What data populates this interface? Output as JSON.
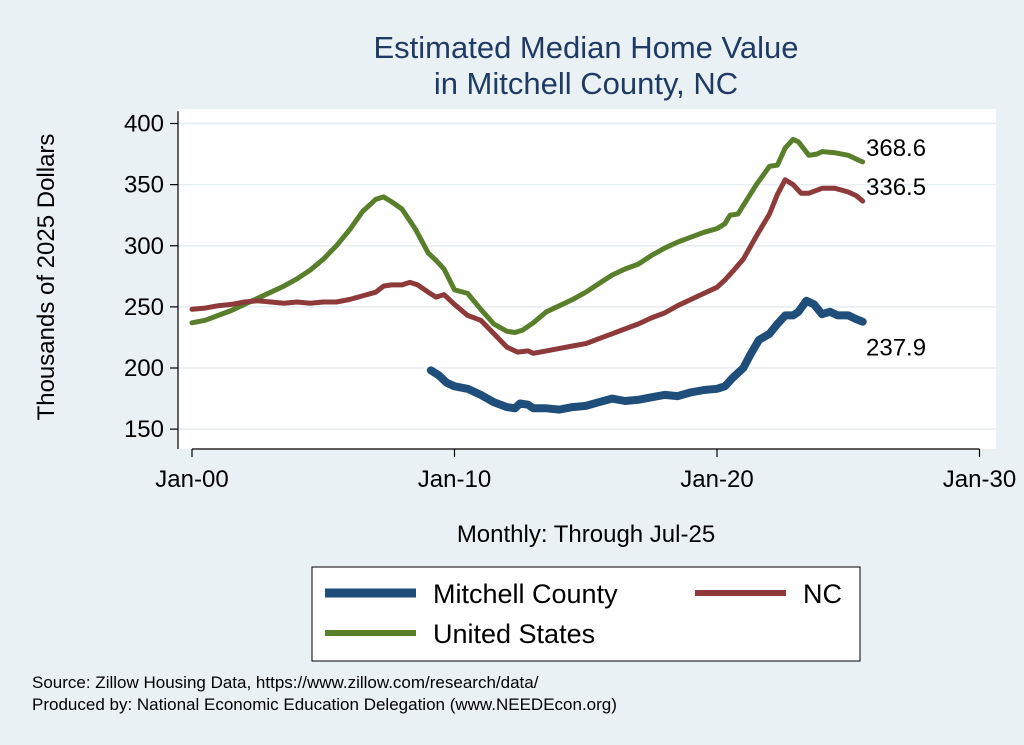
{
  "chart_data": {
    "type": "line",
    "title": [
      "Estimated Median Home Value",
      "in Mitchell County, NC"
    ],
    "xlabel": "Monthly: Through Jul-25",
    "ylabel": "Thousands of 2025 Dollars",
    "x_ticks": [
      {
        "value": 2000,
        "label": "Jan-00"
      },
      {
        "value": 2010,
        "label": "Jan-10"
      },
      {
        "value": 2020,
        "label": "Jan-20"
      },
      {
        "value": 2030,
        "label": "Jan-30"
      }
    ],
    "y_ticks": [
      150,
      200,
      250,
      300,
      350,
      400
    ],
    "xlim": [
      2000,
      2030
    ],
    "ylim": [
      140,
      410
    ],
    "grid": "horizontal",
    "legend_position": "bottom",
    "series": [
      {
        "name": "United States",
        "color": "#5a7f2b",
        "end_label": "368.6",
        "points": [
          [
            2000.0,
            237
          ],
          [
            2000.5,
            239
          ],
          [
            2001.0,
            243
          ],
          [
            2001.5,
            247
          ],
          [
            2002.0,
            252
          ],
          [
            2002.5,
            257
          ],
          [
            2003.0,
            262
          ],
          [
            2003.5,
            267
          ],
          [
            2004.0,
            273
          ],
          [
            2004.5,
            280
          ],
          [
            2005.0,
            289
          ],
          [
            2005.5,
            300
          ],
          [
            2006.0,
            313
          ],
          [
            2006.5,
            328
          ],
          [
            2007.0,
            338
          ],
          [
            2007.3,
            340
          ],
          [
            2007.6,
            336
          ],
          [
            2008.0,
            330
          ],
          [
            2008.5,
            314
          ],
          [
            2009.0,
            294
          ],
          [
            2009.3,
            288
          ],
          [
            2009.6,
            281
          ],
          [
            2010.0,
            264
          ],
          [
            2010.5,
            261
          ],
          [
            2011.0,
            248
          ],
          [
            2011.5,
            236
          ],
          [
            2012.0,
            230
          ],
          [
            2012.3,
            229
          ],
          [
            2012.6,
            231
          ],
          [
            2013.0,
            237
          ],
          [
            2013.5,
            246
          ],
          [
            2014.0,
            251
          ],
          [
            2014.5,
            256
          ],
          [
            2015.0,
            262
          ],
          [
            2015.5,
            269
          ],
          [
            2016.0,
            276
          ],
          [
            2016.5,
            281
          ],
          [
            2017.0,
            285
          ],
          [
            2017.5,
            292
          ],
          [
            2018.0,
            298
          ],
          [
            2018.5,
            303
          ],
          [
            2019.0,
            307
          ],
          [
            2019.5,
            311
          ],
          [
            2020.0,
            314
          ],
          [
            2020.3,
            318
          ],
          [
            2020.5,
            325
          ],
          [
            2020.8,
            326
          ],
          [
            2021.0,
            333
          ],
          [
            2021.5,
            350
          ],
          [
            2022.0,
            365
          ],
          [
            2022.3,
            366
          ],
          [
            2022.6,
            380
          ],
          [
            2022.9,
            387
          ],
          [
            2023.1,
            385
          ],
          [
            2023.5,
            374
          ],
          [
            2023.8,
            375
          ],
          [
            2024.0,
            377
          ],
          [
            2024.5,
            376
          ],
          [
            2025.0,
            374
          ],
          [
            2025.3,
            371
          ],
          [
            2025.55,
            368.6
          ]
        ]
      },
      {
        "name": "NC",
        "color": "#8e3a3a",
        "end_label": "336.5",
        "points": [
          [
            2000.0,
            248
          ],
          [
            2000.5,
            249
          ],
          [
            2001.0,
            251
          ],
          [
            2001.5,
            252
          ],
          [
            2002.0,
            254
          ],
          [
            2002.5,
            255
          ],
          [
            2003.0,
            254
          ],
          [
            2003.5,
            253
          ],
          [
            2004.0,
            254
          ],
          [
            2004.5,
            253
          ],
          [
            2005.0,
            254
          ],
          [
            2005.5,
            254
          ],
          [
            2006.0,
            256
          ],
          [
            2006.5,
            259
          ],
          [
            2007.0,
            262
          ],
          [
            2007.3,
            267
          ],
          [
            2007.6,
            268
          ],
          [
            2008.0,
            268
          ],
          [
            2008.3,
            270
          ],
          [
            2008.6,
            268
          ],
          [
            2009.0,
            262
          ],
          [
            2009.3,
            258
          ],
          [
            2009.6,
            260
          ],
          [
            2010.0,
            252
          ],
          [
            2010.5,
            243
          ],
          [
            2011.0,
            239
          ],
          [
            2011.5,
            228
          ],
          [
            2012.0,
            217
          ],
          [
            2012.4,
            213
          ],
          [
            2012.8,
            214
          ],
          [
            2013.0,
            212
          ],
          [
            2013.5,
            214
          ],
          [
            2014.0,
            216
          ],
          [
            2014.5,
            218
          ],
          [
            2015.0,
            220
          ],
          [
            2015.5,
            224
          ],
          [
            2016.0,
            228
          ],
          [
            2016.5,
            232
          ],
          [
            2017.0,
            236
          ],
          [
            2017.5,
            241
          ],
          [
            2018.0,
            245
          ],
          [
            2018.5,
            251
          ],
          [
            2019.0,
            256
          ],
          [
            2019.5,
            261
          ],
          [
            2020.0,
            266
          ],
          [
            2020.3,
            272
          ],
          [
            2020.6,
            279
          ],
          [
            2021.0,
            289
          ],
          [
            2021.5,
            308
          ],
          [
            2022.0,
            326
          ],
          [
            2022.3,
            342
          ],
          [
            2022.6,
            354
          ],
          [
            2022.9,
            350
          ],
          [
            2023.2,
            343
          ],
          [
            2023.5,
            343
          ],
          [
            2024.0,
            347
          ],
          [
            2024.5,
            347
          ],
          [
            2025.0,
            344
          ],
          [
            2025.3,
            341
          ],
          [
            2025.55,
            336.5
          ]
        ]
      },
      {
        "name": "Mitchell County",
        "color": "#1f4e7a",
        "end_label": "237.9",
        "points": [
          [
            2009.1,
            198
          ],
          [
            2009.4,
            194
          ],
          [
            2009.7,
            188
          ],
          [
            2010.0,
            185
          ],
          [
            2010.5,
            183
          ],
          [
            2011.0,
            178
          ],
          [
            2011.5,
            172
          ],
          [
            2012.0,
            168
          ],
          [
            2012.3,
            167
          ],
          [
            2012.5,
            171
          ],
          [
            2012.8,
            170
          ],
          [
            2013.0,
            167
          ],
          [
            2013.5,
            167
          ],
          [
            2014.0,
            166
          ],
          [
            2014.5,
            168
          ],
          [
            2015.0,
            169
          ],
          [
            2015.5,
            172
          ],
          [
            2016.0,
            175
          ],
          [
            2016.5,
            173
          ],
          [
            2017.0,
            174
          ],
          [
            2017.5,
            176
          ],
          [
            2018.0,
            178
          ],
          [
            2018.5,
            177
          ],
          [
            2019.0,
            180
          ],
          [
            2019.5,
            182
          ],
          [
            2020.0,
            183
          ],
          [
            2020.3,
            185
          ],
          [
            2020.6,
            192
          ],
          [
            2021.0,
            200
          ],
          [
            2021.3,
            212
          ],
          [
            2021.6,
            223
          ],
          [
            2022.0,
            228
          ],
          [
            2022.3,
            236
          ],
          [
            2022.6,
            243
          ],
          [
            2022.9,
            243
          ],
          [
            2023.1,
            246
          ],
          [
            2023.4,
            255
          ],
          [
            2023.7,
            252
          ],
          [
            2024.0,
            244
          ],
          [
            2024.3,
            246
          ],
          [
            2024.6,
            243
          ],
          [
            2025.0,
            243
          ],
          [
            2025.3,
            240
          ],
          [
            2025.55,
            237.9
          ]
        ]
      }
    ]
  },
  "source_lines": [
    "Source: Zillow Housing Data, https://www.zillow.com/research/data/",
    "Produced by: National Economic Education Delegation (www.NEEDEcon.org)"
  ]
}
